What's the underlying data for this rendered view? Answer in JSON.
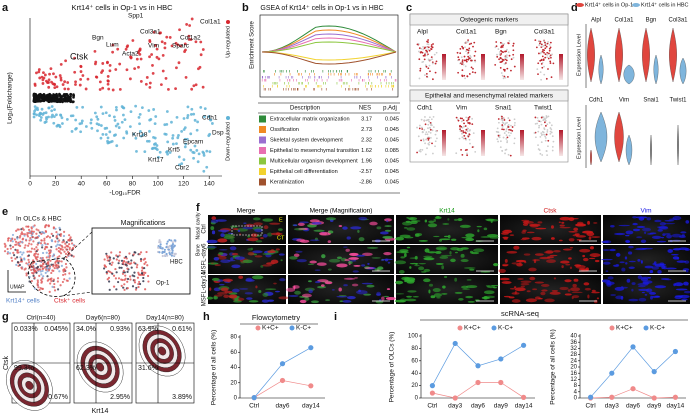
{
  "panel_labels": [
    "a",
    "b",
    "c",
    "d",
    "e",
    "f",
    "g",
    "h",
    "i"
  ],
  "panel_a": {
    "title": "Krt14⁺ cells in Op-1 vs in HBC",
    "ylabel": "Log₂(Foldchange)",
    "xlabel": "-Log₁₀FDR",
    "xlim": [
      0,
      150
    ],
    "xticks": [
      0,
      20,
      40,
      60,
      80,
      100,
      120,
      140
    ],
    "up_genes": [
      "Spp1",
      "Col1a1",
      "Col3a1",
      "Col1a2",
      "Bgn",
      "Lum",
      "Vim",
      "Acta2",
      "Sparc",
      "Ctsk"
    ],
    "down_genes": [
      "Cdh1",
      "Dsp",
      "Epcam",
      "Krt18",
      "Krt5",
      "Krt17",
      "Cbr2"
    ],
    "legend_up": "Up-regulated",
    "legend_down": "Down-regulated"
  },
  "panel_b": {
    "title": "GSEA of Krt14⁺ cells in Op-1 vs in HBC",
    "ylabel": "Enrichment Score",
    "header": [
      "Description",
      "NES",
      "p.Adj"
    ],
    "rows": [
      [
        "Extracellular matrix organization",
        3.17,
        0.045
      ],
      [
        "Ossification",
        2.73,
        0.045
      ],
      [
        "Skeletal system development",
        2.32,
        0.045
      ],
      [
        "Epithelial to mesenchymal transition",
        1.62,
        0.085
      ],
      [
        "Multicellular organism development",
        1.96,
        0.045
      ],
      [
        "Epithelial cell differentiation",
        -2.57,
        0.045
      ],
      [
        "Keratinization",
        -2.86,
        0.045
      ]
    ],
    "row_colors": [
      "#2e8b3a",
      "#f08a24",
      "#9b6fd0",
      "#e86fb0",
      "#8cc63f",
      "#f2d22e",
      "#a0522d"
    ]
  },
  "panel_c": {
    "groups": [
      {
        "title": "Osteogenic markers",
        "genes": [
          "Alpl",
          "Col1a1",
          "Bgn",
          "Col3a1"
        ]
      },
      {
        "title": "Epithelial and mesenchymal related markers",
        "genes": [
          "Cdh1",
          "Vim",
          "Snai1",
          "Twist1"
        ]
      }
    ]
  },
  "panel_d": {
    "legend": [
      "Krt14⁺ cells in Op-1",
      "Krt14⁺ cells in HBC"
    ],
    "colors": [
      "#e0463e",
      "#7fb5dc"
    ],
    "ylabel": "Expression Level",
    "genes_top": [
      "Alpl",
      "Col1a1",
      "Bgn",
      "Col3a1"
    ],
    "genes_bottom": [
      "Cdh1",
      "Vim",
      "Snai1",
      "Twist1"
    ]
  },
  "panel_e": {
    "title": "In OLCs & HBC",
    "magnifications": "Magnifications",
    "hbc": "HBC",
    "op1": "Op-1",
    "umap": "UMAP",
    "legend": [
      "Krt14⁺ cells",
      "Ctsk⁺ cells"
    ]
  },
  "panel_f": {
    "columns": [
      "Merge",
      "Merge (Magnification)",
      "Krt14",
      "Ctsk",
      "Vim"
    ],
    "rows": [
      "Ctrl",
      "MSFL-day6",
      "MSFL-day14"
    ],
    "nasal": "Nasal cavity",
    "bone": "Bone",
    "e_mark": "E",
    "ct_mark": "CT"
  },
  "panel_g": {
    "xlabel": "Krt14",
    "ylabel": "Ctsk",
    "plots": [
      {
        "title": "Ctrl(n=40)",
        "quadrants": [
          "0.033%",
          "0.045%",
          "99.3%",
          "0.67%"
        ]
      },
      {
        "title": "Day6(n=80)",
        "quadrants": [
          "34.0%",
          "0.93%",
          "62.3%",
          "2.95%"
        ]
      },
      {
        "title": "Day14(n=80)",
        "quadrants": [
          "63.9%",
          "0.61%",
          "31.6%",
          "3.89%"
        ]
      }
    ]
  },
  "panel_i": {
    "title": "scRNA-seq"
  },
  "chart_data": [
    {
      "type": "line",
      "title": "Flowcytometry",
      "ylabel": "Percentage of all cells (%)",
      "categories": [
        "Ctrl",
        "day6",
        "day14"
      ],
      "ylim": [
        0,
        80
      ],
      "yticks": [
        0,
        20,
        40,
        60,
        80
      ],
      "series": [
        {
          "name": "K+C+",
          "color": "#f08a8a",
          "values": [
            0.5,
            23,
            16
          ]
        },
        {
          "name": "K-C+",
          "color": "#5b9be0",
          "values": [
            0.5,
            45,
            66
          ]
        }
      ]
    },
    {
      "type": "line",
      "ylabel": "Percentage of OLCs (%)",
      "categories": [
        "Ctrl",
        "day3",
        "day6",
        "day9",
        "day14"
      ],
      "ylim": [
        0,
        100
      ],
      "yticks": [
        0,
        20,
        40,
        60,
        80,
        100
      ],
      "series": [
        {
          "name": "K+C+",
          "color": "#f08a8a",
          "values": [
            8,
            0,
            25,
            25,
            1
          ]
        },
        {
          "name": "K-C+",
          "color": "#5b9be0",
          "values": [
            20,
            88,
            52,
            63,
            85
          ]
        }
      ]
    },
    {
      "type": "line",
      "ylabel": "Percentage of all cells (%)",
      "categories": [
        "Ctrl",
        "day3",
        "day6",
        "day9",
        "day14"
      ],
      "ylim": [
        0,
        40
      ],
      "yticks": [
        0,
        4,
        8,
        12,
        16,
        20,
        24,
        28,
        32,
        36,
        40
      ],
      "series": [
        {
          "name": "K+C+",
          "color": "#f08a8a",
          "values": [
            0,
            0.5,
            6,
            0,
            0.5
          ]
        },
        {
          "name": "K-C+",
          "color": "#5b9be0",
          "values": [
            0.5,
            16,
            33,
            17,
            30
          ]
        }
      ]
    }
  ]
}
